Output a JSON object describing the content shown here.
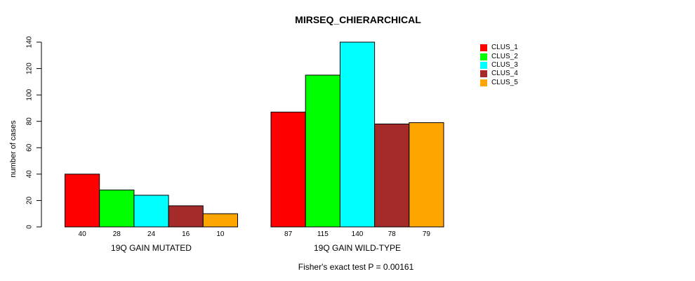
{
  "chart_data": {
    "type": "bar",
    "title": "MIRSEQ_CHIERARCHICAL",
    "ylabel": "number of cases",
    "xlabel": "",
    "footer": "Fisher's exact test P = 0.00161",
    "ylim": [
      0,
      140
    ],
    "yticks": [
      0,
      20,
      40,
      60,
      80,
      100,
      120,
      140
    ],
    "categories": [
      "19Q GAIN MUTATED",
      "19Q GAIN WILD-TYPE"
    ],
    "series": [
      {
        "name": "CLUS_1",
        "color": "#FF0000",
        "values": [
          40,
          87
        ]
      },
      {
        "name": "CLUS_2",
        "color": "#00FF00",
        "values": [
          28,
          115
        ]
      },
      {
        "name": "CLUS_3",
        "color": "#00FFFF",
        "values": [
          24,
          140
        ]
      },
      {
        "name": "CLUS_4",
        "color": "#A52A2A",
        "values": [
          16,
          78
        ]
      },
      {
        "name": "CLUS_5",
        "color": "#FFA500",
        "values": [
          10,
          79
        ]
      }
    ],
    "legend_position": "right",
    "grid": "off",
    "colors": {
      "bar_border": "#000000",
      "axis": "#000000",
      "text": "#000000",
      "background": "#FFFFFF"
    }
  }
}
